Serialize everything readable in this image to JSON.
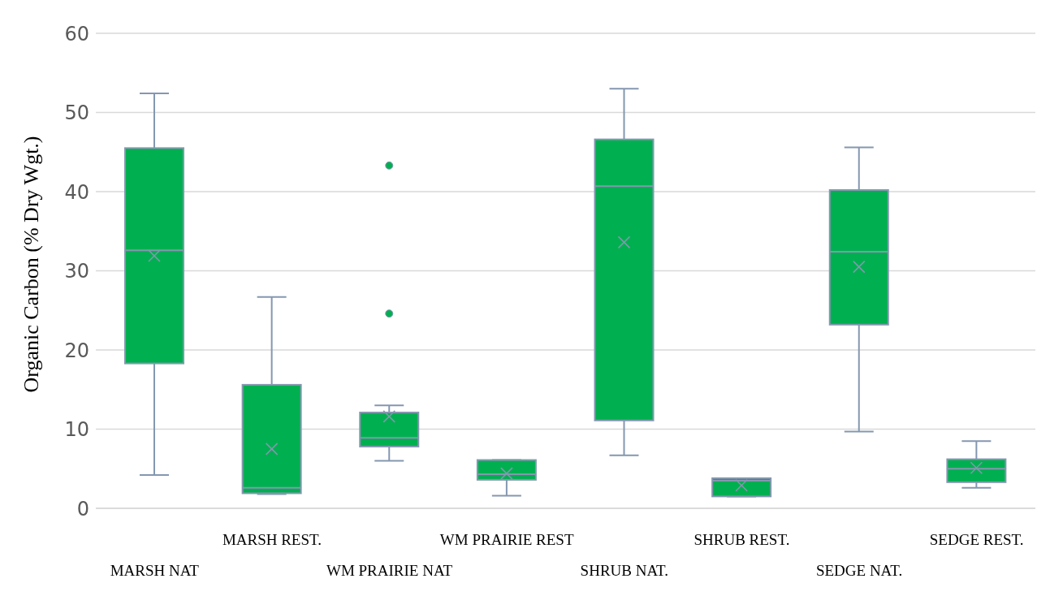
{
  "chart_data": {
    "type": "box",
    "ylabel": "Organic Carbon (% Dry Wgt.)",
    "categories": [
      "MARSH NAT",
      "MARSH REST.",
      "WM PRAIRIE NAT",
      "WM PRAIRIE REST",
      "SHRUB NAT.",
      "SHRUB REST.",
      "SEDGE NAT.",
      "SEDGE REST."
    ],
    "color": "#00b050",
    "boxes": [
      {
        "low": 4.2,
        "q1": 18.3,
        "median": 32.6,
        "q3": 45.5,
        "high": 52.4,
        "mean": 31.9
      },
      {
        "low": 1.8,
        "q1": 1.9,
        "median": 2.6,
        "q3": 15.6,
        "high": 26.7,
        "mean": 7.5
      },
      {
        "low": 6.0,
        "q1": 7.8,
        "median": 8.9,
        "q3": 12.1,
        "high": 13.0,
        "mean": 11.6,
        "outliers": [
          43.3,
          24.6
        ]
      },
      {
        "low": 1.6,
        "q1": 3.6,
        "median": 4.3,
        "q3": 6.1,
        "high": 6.1,
        "mean": 4.4
      },
      {
        "low": 6.7,
        "q1": 11.1,
        "median": 40.7,
        "q3": 46.6,
        "high": 53.0,
        "mean": 33.6
      },
      {
        "low": 1.5,
        "q1": 1.5,
        "median": 3.5,
        "q3": 3.8,
        "high": 3.8,
        "mean": 2.9
      },
      {
        "low": 9.7,
        "q1": 23.2,
        "median": 32.4,
        "q3": 40.2,
        "high": 45.6,
        "mean": 30.5
      },
      {
        "low": 2.6,
        "q1": 3.3,
        "median": 5.0,
        "q3": 6.2,
        "high": 8.5,
        "mean": 5.1
      }
    ],
    "ylim": [
      0,
      60
    ],
    "yticks": [
      0,
      10,
      20,
      30,
      40,
      50,
      60
    ],
    "grid": "y"
  }
}
